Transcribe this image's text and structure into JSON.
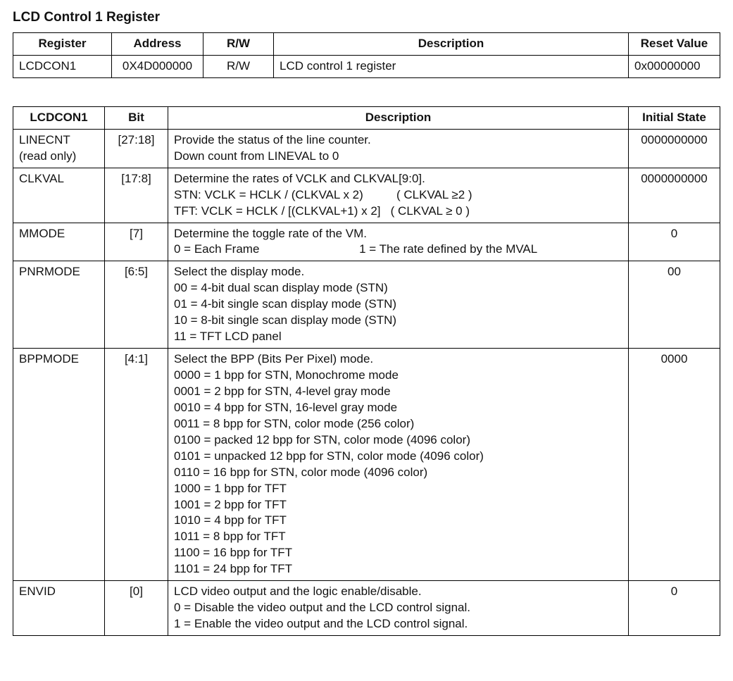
{
  "page_title": "LCD Control 1 Register",
  "reg_table": {
    "headers": [
      "Register",
      "Address",
      "R/W",
      "Description",
      "Reset Value"
    ],
    "row": {
      "register": "LCDCON1",
      "address": "0X4D000000",
      "rw": "R/W",
      "description": "LCD control 1 register",
      "reset_value": "0x00000000"
    }
  },
  "bit_table": {
    "headers": [
      "LCDCON1",
      "Bit",
      "Description",
      "Initial State"
    ],
    "rows": [
      {
        "name": "LINECNT\n(read only)",
        "bit": "[27:18]",
        "desc": "Provide the status of the line counter.\nDown count from LINEVAL to 0",
        "initial": "0000000000"
      },
      {
        "name": "CLKVAL",
        "bit": "[17:8]",
        "desc": "Determine the rates of VCLK and CLKVAL[9:0].\nSTN: VCLK = HCLK / (CLKVAL x 2)          ( CLKVAL ≥2 )\nTFT: VCLK = HCLK / [(CLKVAL+1) x 2]   ( CLKVAL ≥ 0 )",
        "initial": "0000000000"
      },
      {
        "name": "MMODE",
        "bit": "[7]",
        "desc": "Determine the toggle rate of the VM.\n0 = Each Frame                              1 = The rate defined by the MVAL",
        "initial": "0"
      },
      {
        "name": "PNRMODE",
        "bit": "[6:5]",
        "desc": "Select the display mode.\n00 = 4-bit dual scan display mode (STN)\n01 = 4-bit single scan display mode (STN)\n10 = 8-bit single scan display mode (STN)\n11 = TFT LCD panel",
        "initial": "00"
      },
      {
        "name": "BPPMODE",
        "bit": "[4:1]",
        "desc": "Select the BPP (Bits Per Pixel) mode.\n0000 = 1 bpp for STN, Monochrome mode\n0001 = 2 bpp for STN, 4-level gray mode\n0010 = 4 bpp for STN, 16-level gray mode\n0011 = 8 bpp for STN, color mode (256 color)\n0100 = packed 12 bpp for STN, color mode (4096 color)\n0101 = unpacked 12 bpp for STN, color mode (4096 color)\n0110 = 16 bpp for STN, color mode (4096 color)\n1000 = 1 bpp for TFT\n1001 = 2 bpp for TFT\n1010 = 4 bpp for TFT\n1011 = 8 bpp for TFT\n1100 = 16 bpp for TFT\n1101 = 24 bpp for TFT",
        "initial": "0000"
      },
      {
        "name": "ENVID",
        "bit": "[0]",
        "desc": "LCD video output and the logic enable/disable.\n0 = Disable the video output and the LCD control signal.\n1 = Enable the video output and the LCD control signal.",
        "initial": "0"
      }
    ]
  }
}
